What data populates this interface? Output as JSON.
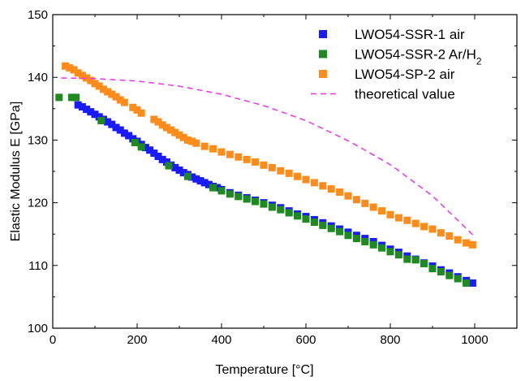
{
  "chart_data": {
    "type": "scatter",
    "xlabel": "Temperature [°C]",
    "ylabel": "Elastic Modulus E [GPa]",
    "xlim": [
      0,
      1100
    ],
    "ylim": [
      100,
      150
    ],
    "xticks": [
      0,
      200,
      400,
      600,
      800,
      1000
    ],
    "yticks": [
      100,
      110,
      120,
      130,
      140,
      150
    ],
    "grid": false,
    "legend_position": "top-right",
    "series": [
      {
        "name": "LWO54-SSR-1 air",
        "marker": "square",
        "color": "#1a1aff",
        "x": [
          60,
          70,
          80,
          90,
          100,
          110,
          120,
          130,
          140,
          150,
          160,
          170,
          180,
          190,
          200,
          210,
          220,
          230,
          240,
          250,
          260,
          270,
          280,
          290,
          300,
          310,
          320,
          330,
          340,
          350,
          360,
          370,
          380,
          390,
          400,
          420,
          440,
          460,
          480,
          500,
          520,
          540,
          560,
          580,
          600,
          620,
          640,
          660,
          680,
          700,
          720,
          740,
          760,
          780,
          800,
          820,
          840,
          860,
          880,
          900,
          920,
          940,
          960,
          980,
          995
        ],
        "y": [
          135.6,
          135.3,
          134.9,
          134.5,
          134.1,
          133.7,
          133.3,
          132.9,
          132.5,
          132.0,
          131.6,
          131.1,
          130.7,
          130.2,
          129.8,
          129.3,
          128.8,
          128.4,
          127.9,
          127.4,
          126.9,
          126.5,
          126.0,
          125.6,
          125.2,
          124.8,
          124.5,
          124.1,
          123.8,
          123.5,
          123.2,
          122.9,
          122.6,
          122.4,
          122.1,
          121.6,
          121.2,
          120.8,
          120.4,
          120.0,
          119.6,
          119.2,
          118.7,
          118.2,
          117.8,
          117.3,
          116.8,
          116.3,
          115.8,
          115.3,
          114.8,
          114.3,
          113.8,
          113.2,
          112.6,
          112.1,
          111.5,
          111.0,
          110.4,
          109.9,
          109.3,
          108.8,
          108.2,
          107.6,
          107.2
        ]
      },
      {
        "name": "LWO54-SSR-2 Ar/H",
        "name_sub": "2",
        "marker": "square",
        "color": "#1f8a1f",
        "x": [
          15,
          45,
          55,
          115,
          195,
          210,
          275,
          320,
          380,
          400,
          420,
          440,
          460,
          480,
          500,
          520,
          540,
          560,
          580,
          600,
          620,
          640,
          660,
          680,
          700,
          720,
          740,
          760,
          780,
          800,
          820,
          840,
          860,
          880,
          900,
          920,
          940,
          960,
          980
        ],
        "y": [
          136.8,
          136.8,
          136.8,
          133.1,
          129.6,
          128.9,
          125.9,
          124.2,
          122.4,
          121.9,
          121.4,
          121.0,
          120.6,
          120.2,
          119.8,
          119.3,
          118.9,
          118.4,
          117.9,
          117.4,
          116.9,
          116.4,
          115.9,
          115.4,
          114.8,
          114.3,
          113.8,
          113.3,
          112.8,
          112.2,
          111.7,
          111.0,
          110.9,
          110.3,
          109.5,
          109.0,
          108.4,
          107.9,
          107.2
        ]
      },
      {
        "name": "LWO54-SP-2 air",
        "marker": "square",
        "color": "#ff8c1a",
        "x": [
          30,
          40,
          50,
          60,
          70,
          80,
          90,
          100,
          110,
          120,
          130,
          140,
          150,
          160,
          170,
          190,
          200,
          210,
          240,
          250,
          260,
          270,
          280,
          290,
          300,
          310,
          320,
          330,
          340,
          360,
          380,
          400,
          420,
          440,
          460,
          480,
          500,
          520,
          540,
          560,
          580,
          600,
          620,
          640,
          660,
          680,
          700,
          720,
          740,
          760,
          780,
          800,
          820,
          840,
          860,
          880,
          900,
          920,
          940,
          960,
          980,
          995
        ],
        "y": [
          141.8,
          141.5,
          141.2,
          140.7,
          140.3,
          139.9,
          139.5,
          139.0,
          138.6,
          138.1,
          137.7,
          137.3,
          136.9,
          136.4,
          136.0,
          135.2,
          134.8,
          134.3,
          133.3,
          132.9,
          132.4,
          132.0,
          131.6,
          131.2,
          130.8,
          130.4,
          130.0,
          129.8,
          129.5,
          129.0,
          128.6,
          128.1,
          127.7,
          127.3,
          126.9,
          126.5,
          126.0,
          125.6,
          125.1,
          124.7,
          124.2,
          123.7,
          123.2,
          122.7,
          122.2,
          121.7,
          121.1,
          120.5,
          119.9,
          119.3,
          118.7,
          118.1,
          117.6,
          117.2,
          116.7,
          116.2,
          115.8,
          115.2,
          114.7,
          114.1,
          113.6,
          113.3
        ]
      },
      {
        "name": "theoretical value",
        "line_style": "dashed",
        "color": "#ee33ee",
        "x": [
          20,
          100,
          200,
          300,
          400,
          500,
          600,
          700,
          800,
          900,
          1000
        ],
        "y": [
          139.9,
          139.8,
          139.4,
          138.6,
          137.3,
          135.5,
          133.1,
          129.9,
          126.1,
          121.1,
          114.6
        ]
      }
    ]
  }
}
